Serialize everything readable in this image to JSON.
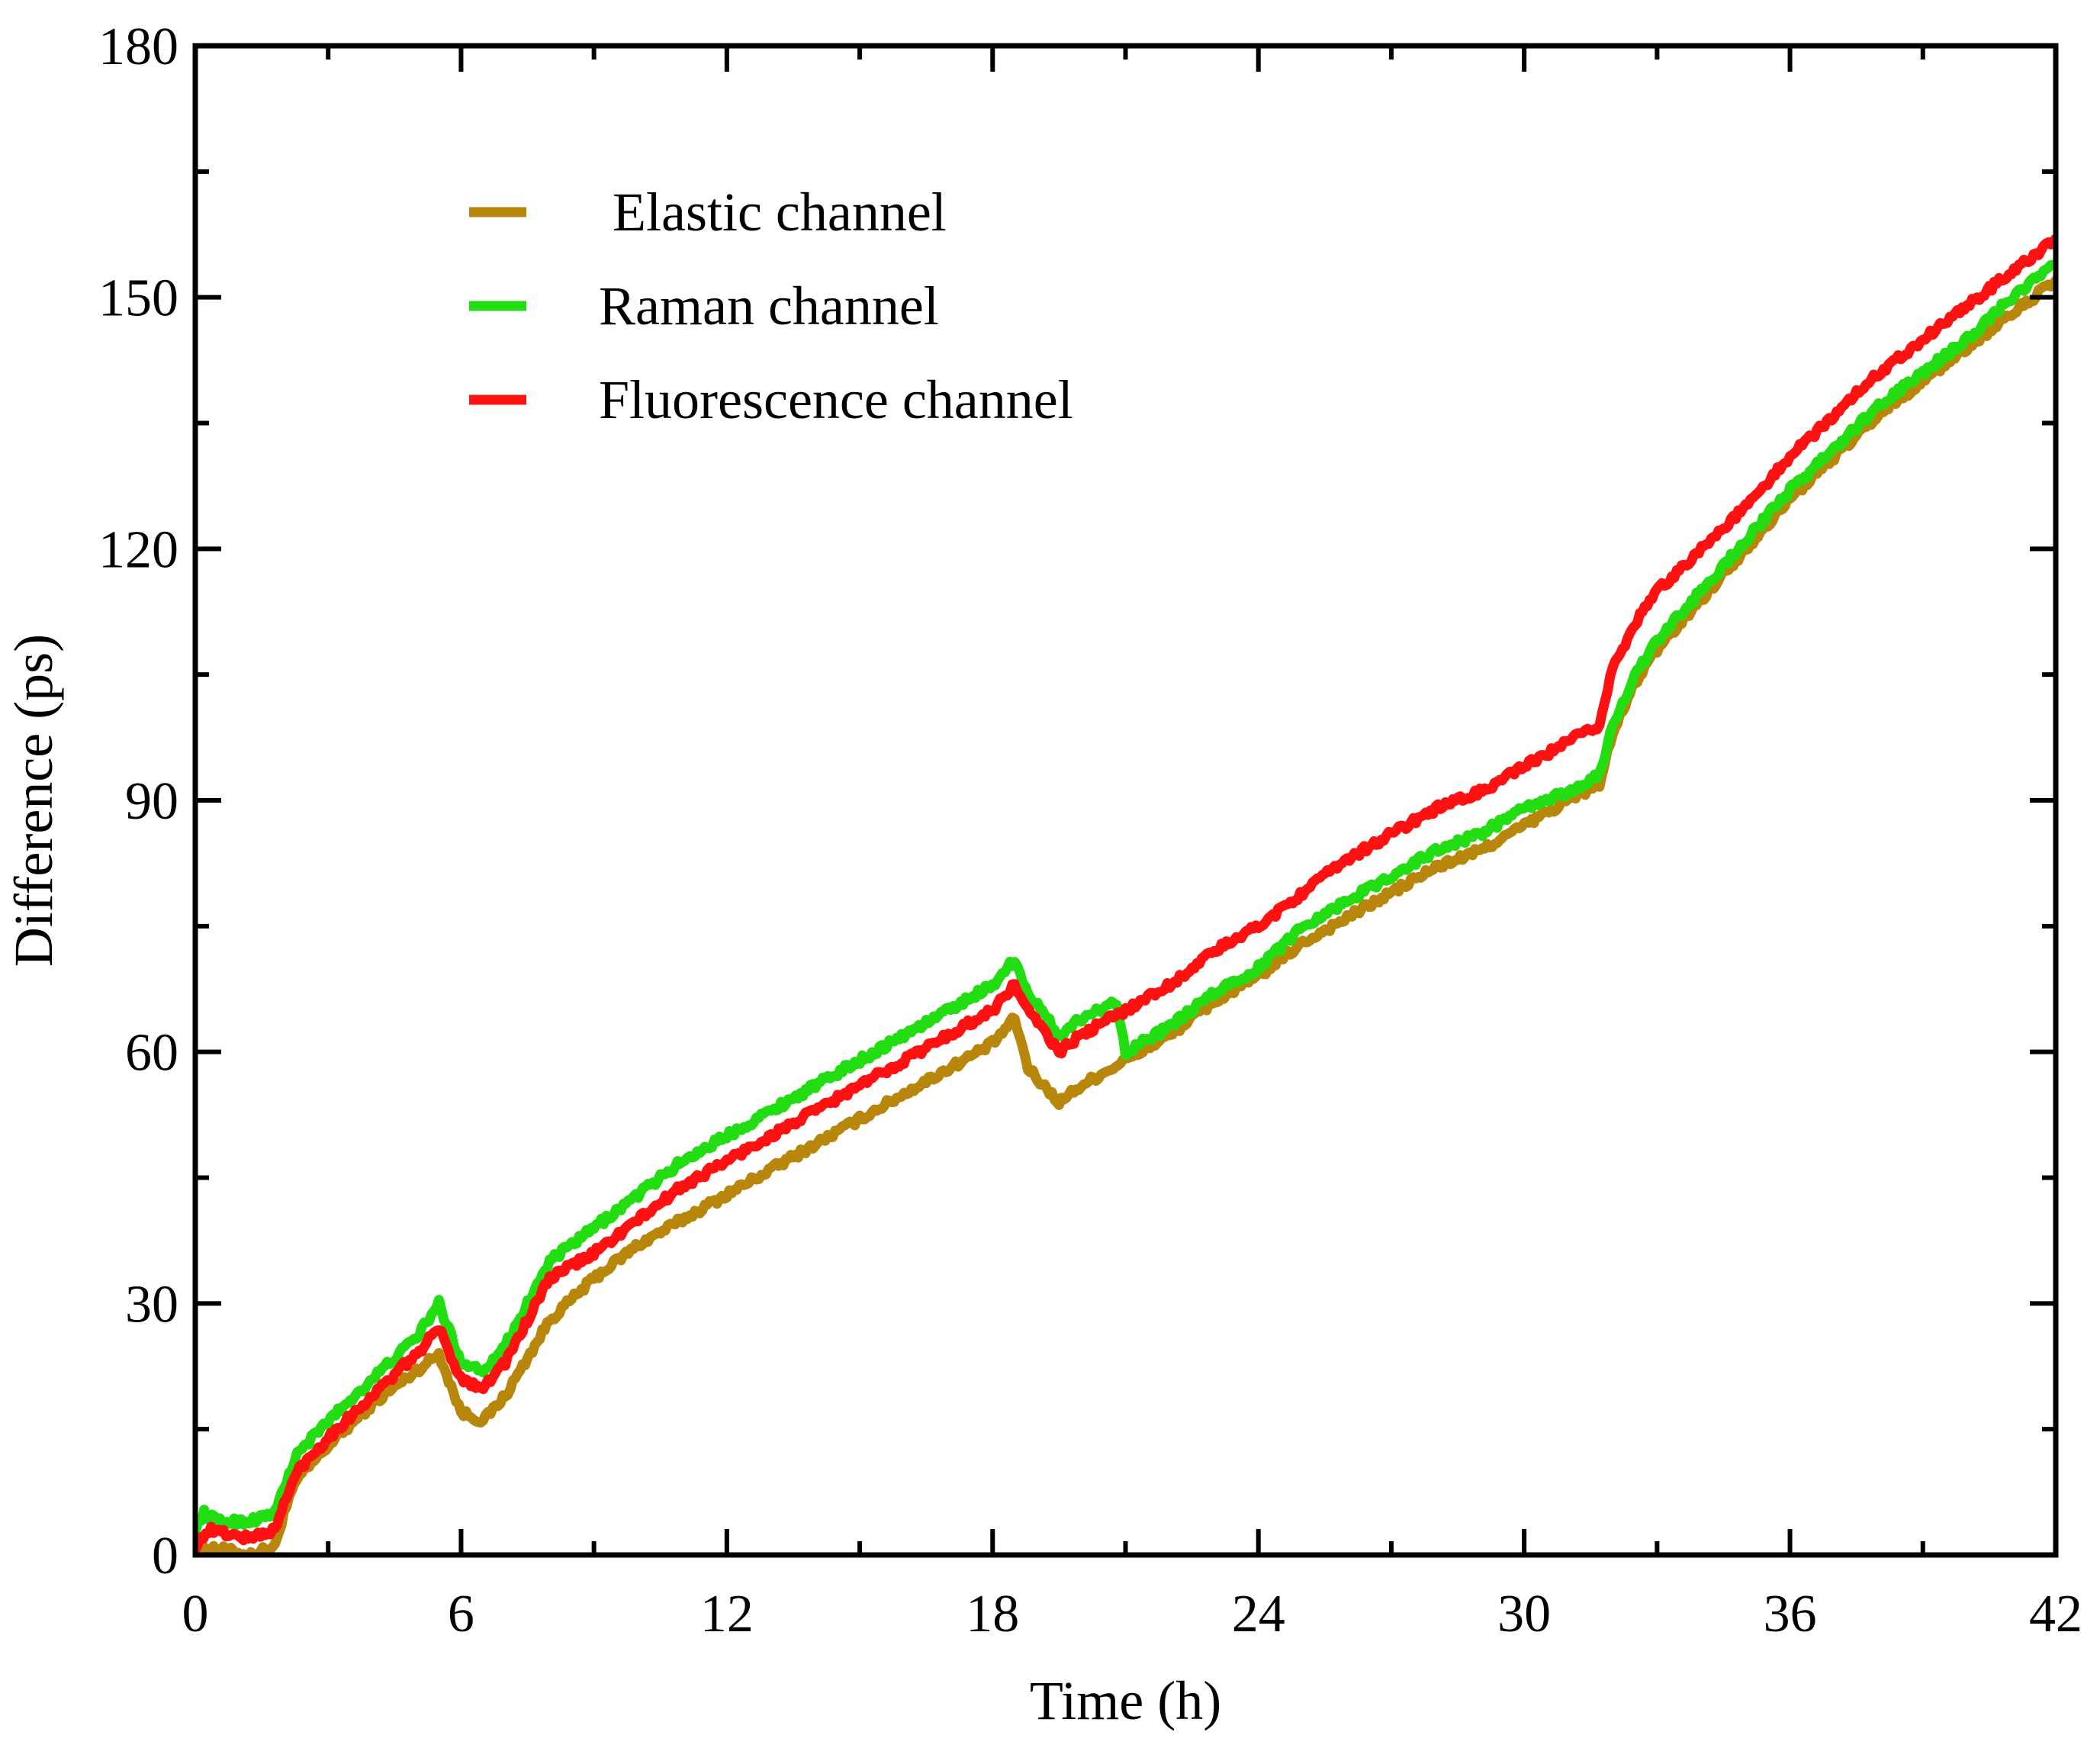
{
  "chart_data": {
    "type": "line",
    "title": "",
    "xlabel": "Time (h)",
    "ylabel": "Difference (ps)",
    "xlim": [
      0,
      42
    ],
    "ylim": [
      0,
      180
    ],
    "xticks": [
      0,
      6,
      12,
      18,
      24,
      30,
      36,
      42
    ],
    "yticks": [
      0,
      30,
      60,
      90,
      120,
      150,
      180
    ],
    "xtick_labels": [
      "0",
      "6",
      "12",
      "18",
      "24",
      "30",
      "36",
      "42"
    ],
    "ytick_labels": [
      "0",
      "30",
      "60",
      "90",
      "120",
      "150",
      "180"
    ],
    "legend_position": "top-left",
    "series": [
      {
        "name": " Elastic channel",
        "color": "#B8860B",
        "x": [
          0,
          0.3,
          1.2,
          1.8,
          2.0,
          2.3,
          3.0,
          4.0,
          5.0,
          5.5,
          6.0,
          6.5,
          7.0,
          8.0,
          9.0,
          10.0,
          11.0,
          12.0,
          13.0,
          14.0,
          15.0,
          16.0,
          17.0,
          18.0,
          18.5,
          18.8,
          19.5,
          20.0,
          21.0,
          22.0,
          23.0,
          24.0,
          25.0,
          26.0,
          27.0,
          28.0,
          29.0,
          30.0,
          31.0,
          31.7,
          32.0,
          32.5,
          33.0,
          34.0,
          35.0,
          36.0,
          37.0,
          38.0,
          39.0,
          40.0,
          41.0,
          42.0
        ],
        "values": [
          0,
          1,
          0,
          1,
          5,
          9,
          13,
          18,
          22,
          24,
          17,
          16,
          19,
          28,
          33,
          37,
          40,
          43,
          46,
          49,
          52,
          55,
          58,
          61,
          64,
          58,
          54,
          56,
          59,
          62,
          66,
          69,
          73,
          76,
          79,
          82,
          84,
          87,
          90,
          92,
          98,
          104,
          108,
          114,
          120,
          126,
          131,
          136,
          140,
          144,
          148,
          152
        ]
      },
      {
        "name": "Raman channel",
        "color": "#22DD11",
        "x": [
          0,
          0.2,
          0.5,
          1.2,
          1.8,
          2.0,
          2.3,
          3.0,
          4.0,
          5.0,
          5.5,
          6.0,
          6.5,
          7.0,
          8.0,
          9.0,
          10.0,
          11.0,
          12.0,
          13.0,
          14.0,
          15.0,
          16.0,
          17.0,
          18.0,
          18.5,
          18.8,
          19.5,
          20.0,
          20.8,
          21.0,
          22.0,
          23.0,
          24.0,
          25.0,
          26.0,
          27.0,
          28.0,
          29.0,
          30.0,
          31.0,
          31.7,
          32.0,
          32.5,
          33.0,
          34.0,
          35.0,
          36.0,
          37.0,
          38.0,
          39.0,
          40.0,
          41.0,
          42.0
        ],
        "values": [
          3,
          5,
          4,
          4,
          5,
          8,
          12,
          16,
          21,
          26,
          30,
          23,
          22,
          25,
          35,
          39,
          43,
          47,
          50,
          53,
          56,
          59,
          62,
          65,
          68,
          71,
          67,
          62,
          64,
          66,
          60,
          63,
          67,
          70,
          75,
          78,
          81,
          84,
          86,
          89,
          91,
          93,
          99,
          105,
          109,
          115,
          121,
          127,
          132,
          137,
          141,
          145,
          150,
          154
        ]
      },
      {
        "name": "Fluorescence channel",
        "color": "#FF1111",
        "x": [
          0,
          0.3,
          1.2,
          1.8,
          2.0,
          2.3,
          3.0,
          4.0,
          5.0,
          5.5,
          6.0,
          6.5,
          7.0,
          8.0,
          9.0,
          10.0,
          11.0,
          12.0,
          13.0,
          14.0,
          15.0,
          16.0,
          17.0,
          18.0,
          18.5,
          18.8,
          19.5,
          20.0,
          21.0,
          22.0,
          23.0,
          24.0,
          25.0,
          26.0,
          27.0,
          28.0,
          29.0,
          30.0,
          31.0,
          31.7,
          32.0,
          32.5,
          33.0,
          34.0,
          35.0,
          36.0,
          37.0,
          38.0,
          39.0,
          40.0,
          41.0,
          42.0
        ],
        "values": [
          1,
          3,
          2,
          3,
          6,
          10,
          14,
          19,
          24,
          27,
          21,
          20,
          23,
          33,
          36,
          40,
          44,
          47,
          50,
          53,
          56,
          59,
          62,
          65,
          68,
          65,
          60,
          62,
          65,
          68,
          72,
          75,
          79,
          83,
          86,
          89,
          91,
          94,
          97,
          99,
          106,
          111,
          115,
          120,
          125,
          131,
          136,
          141,
          145,
          149,
          153,
          157
        ]
      }
    ]
  }
}
